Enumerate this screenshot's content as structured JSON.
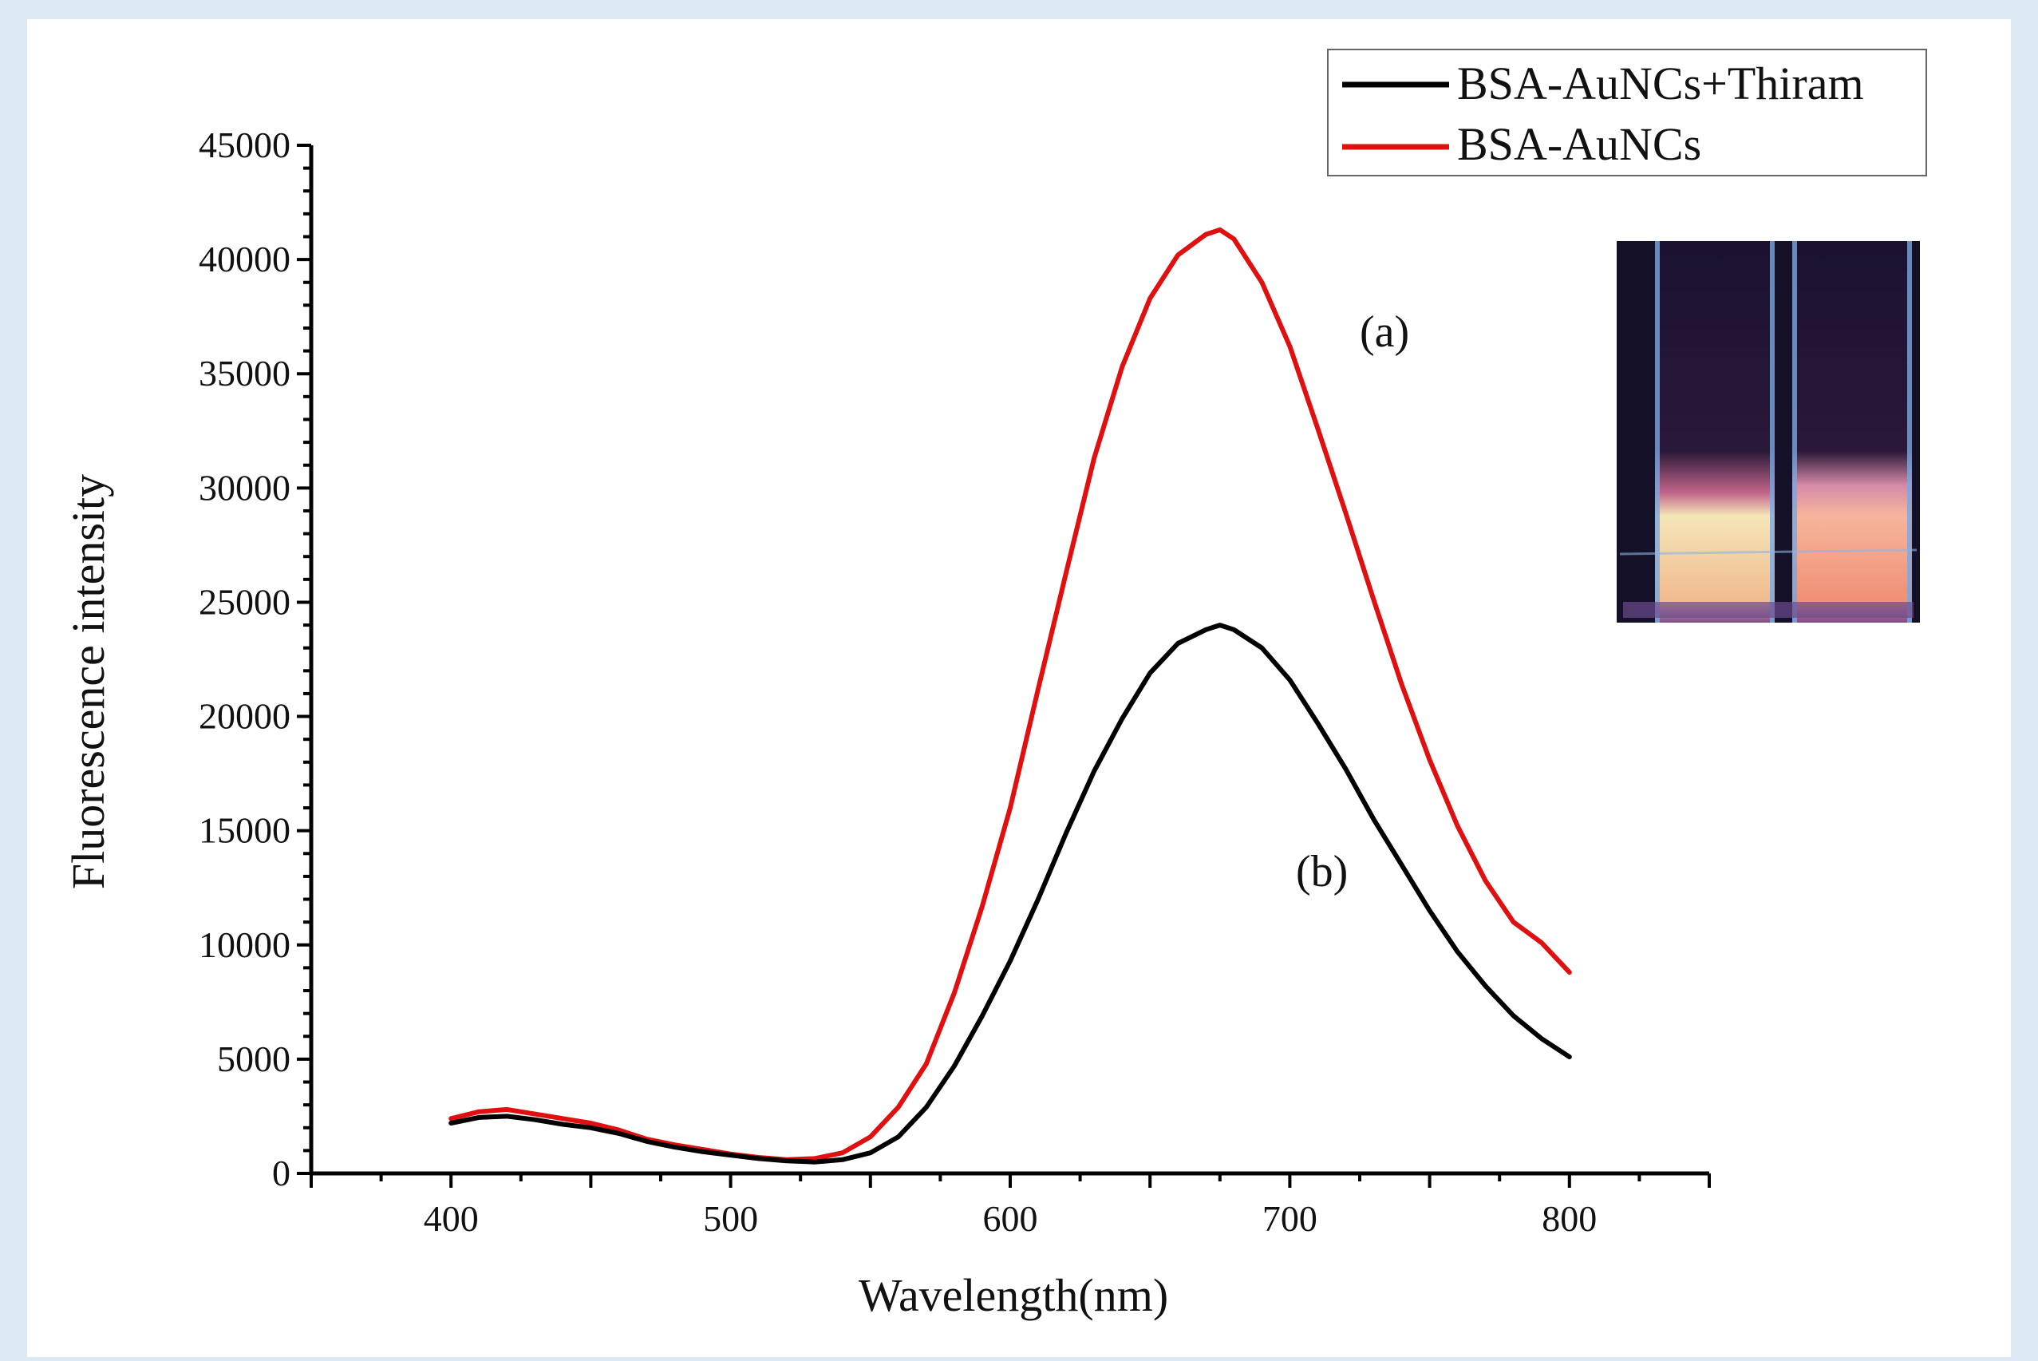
{
  "chart_data": {
    "type": "line",
    "xlabel": "Wavelength(nm)",
    "ylabel": "Fluorescence intensity",
    "xlim": [
      350,
      850
    ],
    "ylim": [
      0,
      45000
    ],
    "x_ticks": [
      400,
      500,
      600,
      700,
      800
    ],
    "y_ticks": [
      0,
      5000,
      10000,
      15000,
      20000,
      25000,
      30000,
      35000,
      40000,
      45000
    ],
    "legend_position": "top-right",
    "grid": false,
    "series": [
      {
        "name": "BSA-AuNCs+Thiram",
        "color": "#000000",
        "x": [
          400,
          410,
          420,
          430,
          440,
          450,
          460,
          470,
          480,
          490,
          500,
          510,
          520,
          530,
          540,
          550,
          560,
          570,
          580,
          590,
          600,
          610,
          620,
          630,
          640,
          650,
          660,
          670,
          675,
          680,
          690,
          700,
          710,
          720,
          730,
          740,
          750,
          760,
          770,
          780,
          790,
          800
        ],
        "y": [
          2200,
          2450,
          2500,
          2350,
          2150,
          2000,
          1750,
          1400,
          1150,
          950,
          800,
          650,
          550,
          500,
          600,
          900,
          1600,
          2900,
          4700,
          6900,
          9300,
          12000,
          14900,
          17600,
          19900,
          21900,
          23200,
          23800,
          24000,
          23800,
          23000,
          21600,
          19700,
          17700,
          15500,
          13500,
          11500,
          9700,
          8200,
          6900,
          5900,
          5100
        ]
      },
      {
        "name": "BSA-AuNCs",
        "color": "#e01010",
        "x": [
          400,
          410,
          420,
          430,
          440,
          450,
          460,
          470,
          480,
          490,
          500,
          510,
          520,
          530,
          540,
          550,
          560,
          570,
          580,
          590,
          600,
          610,
          620,
          630,
          640,
          650,
          660,
          670,
          675,
          680,
          690,
          700,
          710,
          720,
          730,
          740,
          750,
          760,
          770,
          780,
          790,
          800
        ],
        "y": [
          2400,
          2700,
          2800,
          2600,
          2400,
          2200,
          1900,
          1500,
          1250,
          1050,
          850,
          700,
          600,
          650,
          900,
          1600,
          2900,
          4800,
          7900,
          11700,
          16000,
          21200,
          26300,
          31300,
          35300,
          38300,
          40200,
          41100,
          41300,
          40900,
          39000,
          36200,
          32600,
          28900,
          25100,
          21400,
          18100,
          15200,
          12800,
          11000,
          10100,
          8800
        ]
      }
    ],
    "annotations": [
      "(a)",
      "(b)"
    ]
  }
}
